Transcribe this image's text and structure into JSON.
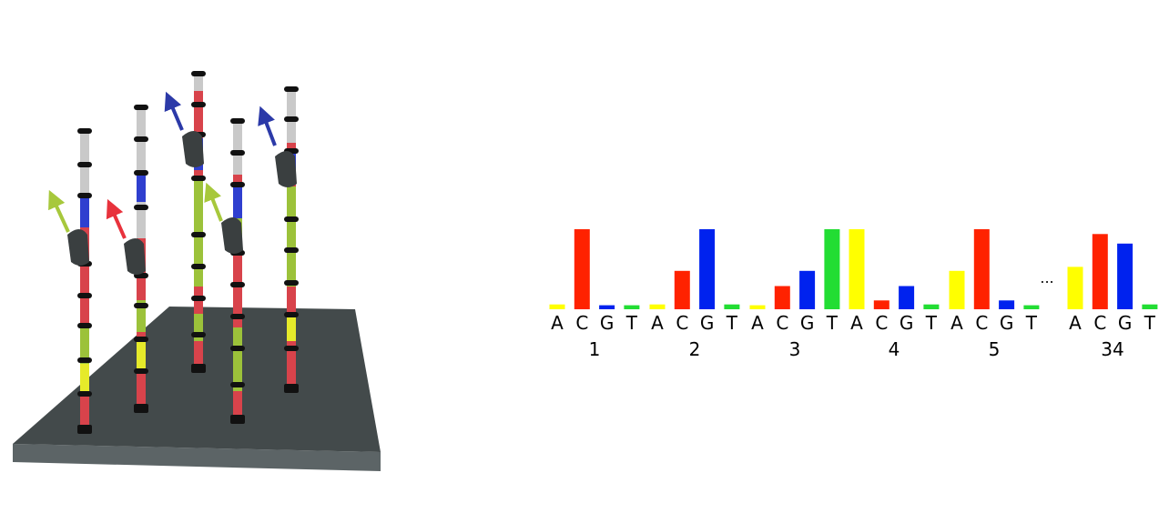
{
  "colors": {
    "A": "#ffff00",
    "C": "#ff2200",
    "G": "#0022ee",
    "T": "#22dd33",
    "platform_top": "#434a4b",
    "platform_side": "#5c6466",
    "strand_red": "#d8434b",
    "strand_yellow": "#e6ea2a",
    "strand_green": "#9cc23a",
    "strand_blue": "#2f3fcf",
    "polymerase": "#3a3f40"
  },
  "illustration": {
    "arrows": [
      {
        "name": "green-arrow-icon",
        "color": "#a7c83c"
      },
      {
        "name": "red-arrow-icon",
        "color": "#e8323c"
      },
      {
        "name": "blue-arrow-icon",
        "color": "#2c3aa8"
      },
      {
        "name": "green-arrow-icon",
        "color": "#a7c83c"
      },
      {
        "name": "blue-arrow-icon",
        "color": "#2c3aa8"
      }
    ]
  },
  "chart_data": {
    "type": "bar",
    "bases": [
      "A",
      "C",
      "G",
      "T"
    ],
    "ellipsis": "...",
    "groups": [
      {
        "position": "1",
        "values": [
          0.06,
          1.0,
          0.05,
          0.05
        ]
      },
      {
        "position": "2",
        "values": [
          0.06,
          0.48,
          1.0,
          0.06
        ]
      },
      {
        "position": "3",
        "values": [
          0.05,
          0.29,
          0.48,
          1.0
        ]
      },
      {
        "position": "4",
        "values": [
          1.0,
          0.11,
          0.29,
          0.06
        ]
      },
      {
        "position": "5",
        "values": [
          0.48,
          1.0,
          0.11,
          0.05
        ]
      },
      {
        "position": "34",
        "values": [
          0.53,
          0.94,
          0.82,
          0.06
        ]
      }
    ],
    "ylim": [
      0,
      1
    ],
    "grid": false,
    "legend": "none"
  }
}
